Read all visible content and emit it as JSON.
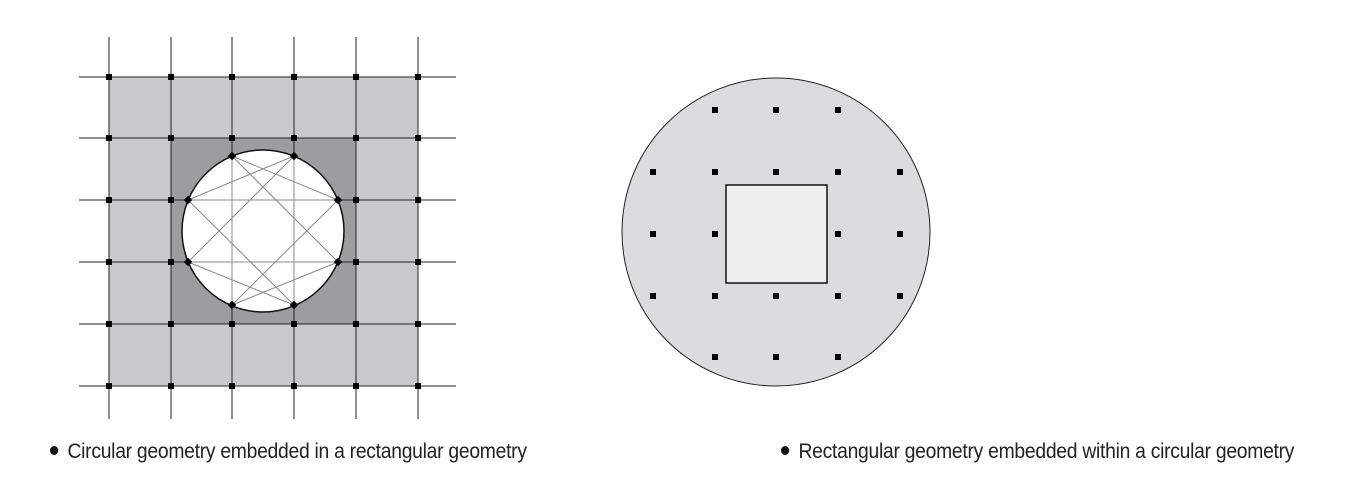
{
  "captions": {
    "left": "Circular geometry embedded in a rectangular geometry",
    "right": "Rectangular geometry embedded within a circular geometry"
  },
  "colors": {
    "outer_fill": "#c9c9cb",
    "inner_fill": "#9d9da0",
    "circle_hole": "#ffffff",
    "disc_fill": "#dcdcde",
    "inner_square": "#f0f0f0",
    "line": "#222222",
    "node": "#000000"
  },
  "icons": {
    "bullet": "filled-circle-bullet"
  }
}
